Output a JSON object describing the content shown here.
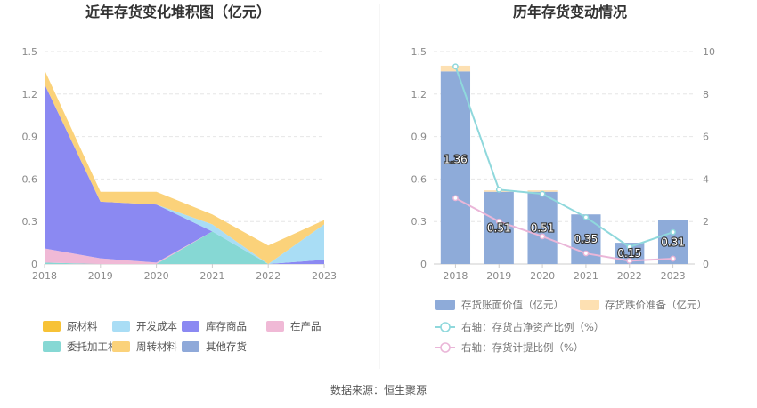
{
  "left_chart_title": "近年存货变化堆积图（亿元）",
  "right_chart_title": "历年存货变动情况",
  "source_text": "数据来源：恒生聚源",
  "chart_data": [
    {
      "type": "area",
      "stacked": true,
      "title": "近年存货变化堆积图（亿元）",
      "x": [
        "2018",
        "2019",
        "2020",
        "2021",
        "2022",
        "2023"
      ],
      "ylim": [
        0,
        1.5
      ],
      "yticks": [
        "0",
        "0.3",
        "0.6",
        "0.9",
        "1.2",
        "1.5"
      ],
      "legend_position": "bottom",
      "series": [
        {
          "name": "原材料",
          "color": "#f7c236",
          "values": [
            0.0,
            0.0,
            0.0,
            0.0,
            0.0,
            0.0
          ]
        },
        {
          "name": "开发成本",
          "color": "#a9ddf5",
          "values": [
            0.0,
            0.0,
            0.0,
            0.05,
            0.0,
            0.25
          ]
        },
        {
          "name": "库存商品",
          "color": "#8b89f2",
          "values": [
            1.16,
            0.4,
            0.41,
            0.0,
            0.0,
            0.03
          ]
        },
        {
          "name": "在产品",
          "color": "#f0b9d6",
          "values": [
            0.1,
            0.04,
            0.01,
            0.0,
            0.0,
            0.0
          ]
        },
        {
          "name": "委托加工材料",
          "color": "#86d8d4",
          "values": [
            0.01,
            0.0,
            0.0,
            0.23,
            0.0,
            0.0
          ]
        },
        {
          "name": "周转材料",
          "color": "#fbd27a",
          "values": [
            0.1,
            0.07,
            0.09,
            0.07,
            0.13,
            0.03
          ]
        },
        {
          "name": "其他存货",
          "color": "#8fa9d9",
          "values": [
            0.0,
            0.0,
            0.0,
            0.0,
            0.0,
            0.0
          ]
        }
      ]
    },
    {
      "type": "bar",
      "title": "历年存货变动情况",
      "categories": [
        "2018",
        "2019",
        "2020",
        "2021",
        "2022",
        "2023"
      ],
      "ylim": [
        0,
        1.5
      ],
      "yticks": [
        "0",
        "0.3",
        "0.6",
        "0.9",
        "1.2",
        "1.5"
      ],
      "y2lim": [
        0,
        10
      ],
      "y2ticks": [
        "0",
        "2",
        "4",
        "6",
        "8",
        "10"
      ],
      "legend_position": "bottom",
      "series": [
        {
          "name": "存货账面价值（亿元）",
          "type": "bar",
          "color": "#8eabd9",
          "values": [
            1.36,
            0.51,
            0.51,
            0.35,
            0.15,
            0.31
          ],
          "labels": [
            "1.36",
            "0.51",
            "0.51",
            "0.35",
            "0.15",
            "0.31"
          ]
        },
        {
          "name": "存货跌价准备（亿元）",
          "type": "bar",
          "color": "#fde0b2",
          "values": [
            0.04,
            0.01,
            0.01,
            0.0,
            0.0,
            0.0
          ]
        },
        {
          "name": "右轴：存货占净资产比例（%）",
          "type": "line",
          "axis": "right",
          "color": "#8fd8dc",
          "values": [
            9.3,
            3.5,
            3.3,
            2.2,
            0.8,
            1.5
          ]
        },
        {
          "name": "右轴：存货计提比例（%）",
          "type": "line",
          "axis": "right",
          "color": "#eab6d8",
          "values": [
            3.1,
            2.0,
            1.3,
            0.5,
            0.15,
            0.25
          ]
        }
      ]
    }
  ]
}
